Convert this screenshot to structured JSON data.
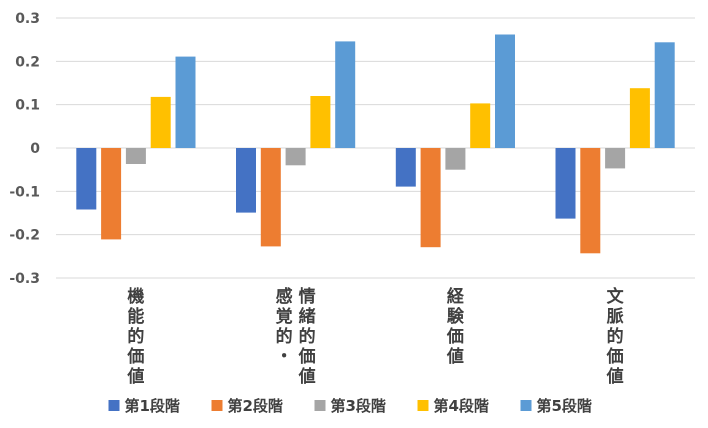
{
  "chart_data": {
    "type": "bar",
    "categories": [
      "機能的価値",
      "情緒的価値\n感覚的・",
      "経験価値",
      "文脈的価値"
    ],
    "series": [
      {
        "name": "第1段階",
        "color": "#4472C4",
        "values": [
          -0.142,
          -0.149,
          -0.089,
          -0.163
        ]
      },
      {
        "name": "第2段階",
        "color": "#ED7D31",
        "values": [
          -0.211,
          -0.227,
          -0.229,
          -0.243
        ]
      },
      {
        "name": "第3段階",
        "color": "#A5A5A5",
        "values": [
          -0.037,
          -0.04,
          -0.05,
          -0.047
        ]
      },
      {
        "name": "第4段階",
        "color": "#FFC000",
        "values": [
          0.118,
          0.12,
          0.103,
          0.138
        ]
      },
      {
        "name": "第5段階",
        "color": "#5B9BD5",
        "values": [
          0.211,
          0.246,
          0.262,
          0.244
        ]
      }
    ],
    "ylim": [
      -0.3,
      0.3
    ],
    "yticks": [
      "0.3",
      "0.2",
      "0.1",
      "0",
      "-0.1",
      "-0.2",
      "-0.3"
    ],
    "grid": true,
    "legend": "bottom",
    "title": "",
    "xlabel": "",
    "ylabel": ""
  }
}
